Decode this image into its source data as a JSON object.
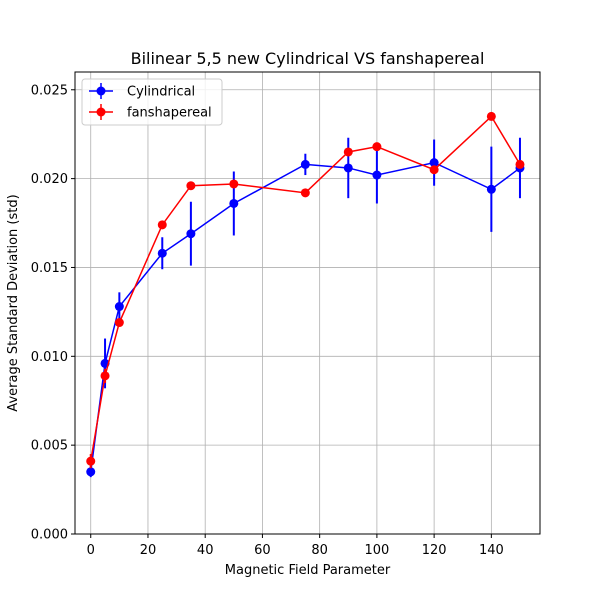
{
  "chart_data": {
    "type": "line",
    "title": "Bilinear 5,5 new Cylindrical VS fanshapereal",
    "xlabel": "Magnetic Field Parameter",
    "ylabel": "Average Standard Deviation (std)",
    "xlim": [
      -5.5,
      157
    ],
    "ylim": [
      0,
      0.026
    ],
    "grid": true,
    "legend_position": "upper-left",
    "x_ticks": [
      0,
      20,
      40,
      60,
      80,
      100,
      120,
      140
    ],
    "x_tick_labels": [
      "0",
      "20",
      "40",
      "60",
      "80",
      "100",
      "120",
      "140"
    ],
    "y_ticks": [
      0,
      0.005,
      0.01,
      0.015,
      0.02,
      0.025
    ],
    "y_tick_labels": [
      "0.000",
      "0.005",
      "0.010",
      "0.015",
      "0.020",
      "0.025"
    ],
    "series": [
      {
        "name": "Cylindrical",
        "color": "#0000ff",
        "x": [
          0,
          5,
          10,
          25,
          35,
          50,
          75,
          90,
          100,
          120,
          140,
          150
        ],
        "y": [
          0.0035,
          0.0096,
          0.0128,
          0.0158,
          0.0169,
          0.0186,
          0.0208,
          0.0206,
          0.0202,
          0.0209,
          0.0194,
          0.0206
        ],
        "err": [
          0.0003,
          0.0014,
          0.0008,
          0.0009,
          0.0018,
          0.0018,
          0.0006,
          0.0017,
          0.0016,
          0.0013,
          0.0024,
          0.0017
        ]
      },
      {
        "name": "fanshapereal",
        "color": "#ff0000",
        "x": [
          0,
          5,
          10,
          25,
          35,
          50,
          75,
          90,
          100,
          120,
          140,
          150
        ],
        "y": [
          0.0041,
          0.0089,
          0.0119,
          0.0174,
          0.0196,
          0.0197,
          0.0192,
          0.0215,
          0.0218,
          0.0205,
          0.0235,
          0.0208
        ],
        "err": [
          0.0004,
          0.0004,
          0.0002,
          0.0002,
          0.0002,
          0.0002,
          0.0002,
          0.0002,
          0.0002,
          0.0002,
          0.0002,
          0.0002
        ]
      }
    ]
  }
}
